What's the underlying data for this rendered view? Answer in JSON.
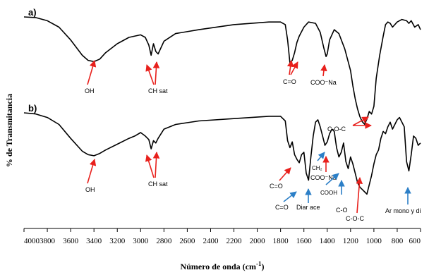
{
  "chart_data": {
    "type": "line",
    "xlabel": "Número de onda (cm",
    "xlabel_sup": "-1",
    "xlabel_close": ")",
    "ylabel": "% de Transmitancia",
    "xlim": [
      4000,
      600
    ],
    "x_ticks": [
      "4000",
      "3800",
      "3600",
      "3400",
      "3200",
      "3000",
      "2800",
      "2600",
      "2400",
      "2200",
      "2000",
      "1800",
      "1600",
      "1400",
      "1200",
      "1000",
      "800",
      "600"
    ],
    "panels": [
      {
        "label": "a)",
        "x": [
          4000,
          3900,
          3800,
          3700,
          3600,
          3500,
          3450,
          3400,
          3350,
          3300,
          3200,
          3100,
          3000,
          2960,
          2930,
          2910,
          2890,
          2870,
          2850,
          2800,
          2700,
          2500,
          2200,
          1900,
          1800,
          1760,
          1740,
          1720,
          1700,
          1680,
          1660,
          1640,
          1600,
          1560,
          1500,
          1460,
          1430,
          1410,
          1400,
          1380,
          1340,
          1300,
          1250,
          1200,
          1180,
          1160,
          1140,
          1120,
          1100,
          1080,
          1060,
          1040,
          1020,
          1000,
          980,
          950,
          920,
          900,
          880,
          860,
          840,
          800,
          760,
          720,
          700,
          680,
          650,
          620,
          600
        ],
        "y": [
          100,
          99.5,
          97,
          92,
          82,
          70,
          66,
          65,
          67,
          72,
          79,
          84,
          86,
          84,
          78,
          70,
          79,
          73,
          71,
          81,
          87,
          90,
          94,
          96,
          96,
          94,
          82,
          64,
          66,
          72,
          80,
          85,
          92,
          96,
          95,
          88,
          76,
          69,
          71,
          82,
          90,
          87,
          75,
          58,
          46,
          36,
          28,
          22,
          18,
          16,
          20,
          26,
          24,
          30,
          52,
          70,
          85,
          94,
          96,
          95,
          92,
          96,
          98,
          97,
          95,
          97,
          92,
          94,
          90
        ]
      },
      {
        "label": "b)",
        "x": [
          4000,
          3900,
          3800,
          3700,
          3600,
          3500,
          3450,
          3400,
          3350,
          3300,
          3200,
          3100,
          3050,
          3000,
          2960,
          2930,
          2910,
          2890,
          2870,
          2850,
          2800,
          2700,
          2500,
          2200,
          1900,
          1800,
          1760,
          1740,
          1720,
          1700,
          1680,
          1660,
          1640,
          1620,
          1600,
          1580,
          1560,
          1540,
          1520,
          1500,
          1480,
          1460,
          1440,
          1420,
          1400,
          1380,
          1360,
          1340,
          1320,
          1300,
          1280,
          1260,
          1240,
          1220,
          1200,
          1180,
          1160,
          1140,
          1120,
          1100,
          1080,
          1060,
          1040,
          1020,
          1000,
          980,
          960,
          940,
          920,
          900,
          880,
          860,
          840,
          820,
          800,
          780,
          760,
          740,
          720,
          700,
          680,
          660,
          640,
          620,
          600
        ],
        "y": [
          100,
          99,
          96,
          90,
          78,
          67,
          64,
          63,
          65,
          68,
          73,
          78,
          80,
          83,
          80,
          77,
          69,
          76,
          74,
          78,
          86,
          90,
          93,
          95,
          97,
          97,
          93,
          76,
          70,
          75,
          64,
          60,
          57,
          64,
          66,
          48,
          42,
          62,
          80,
          92,
          94,
          88,
          80,
          72,
          75,
          82,
          86,
          84,
          70,
          62,
          66,
          74,
          58,
          52,
          62,
          56,
          48,
          40,
          36,
          34,
          32,
          30,
          38,
          46,
          56,
          64,
          68,
          78,
          84,
          82,
          88,
          92,
          86,
          90,
          94,
          96,
          92,
          88,
          58,
          50,
          64,
          80,
          78,
          72,
          74
        ]
      }
    ],
    "annotations": [
      {
        "text": "OH",
        "color": "#e8201c"
      },
      {
        "text": "CH sat",
        "color": "#e8201c"
      },
      {
        "text": "C=O",
        "color": "#e8201c"
      },
      {
        "text": "COO⁻Na",
        "color": "#e8201c"
      },
      {
        "text": "C-O-C",
        "color": "#e8201c"
      },
      {
        "text": "OH",
        "color": "#e8201c"
      },
      {
        "text": "CH sat",
        "color": "#e8201c"
      },
      {
        "text": "C=O",
        "color": "#e8201c"
      },
      {
        "text": "C=O",
        "color": "#2c7fc7"
      },
      {
        "text": "Diar ace",
        "color": "#2c7fc7"
      },
      {
        "text": "CH₂",
        "color": "#2c7fc7"
      },
      {
        "text": "COO⁻Na",
        "color": "#e8201c"
      },
      {
        "text": "COOH",
        "color": "#2c7fc7"
      },
      {
        "text": "C-O",
        "color": "#2c7fc7"
      },
      {
        "text": "C-O-C",
        "color": "#e8201c"
      },
      {
        "text": "Ar mono y di",
        "color": "#2c7fc7"
      }
    ],
    "colors": {
      "spectrum": "#000000",
      "red_arrow": "#e8201c",
      "blue_arrow": "#2c7fc7"
    }
  }
}
